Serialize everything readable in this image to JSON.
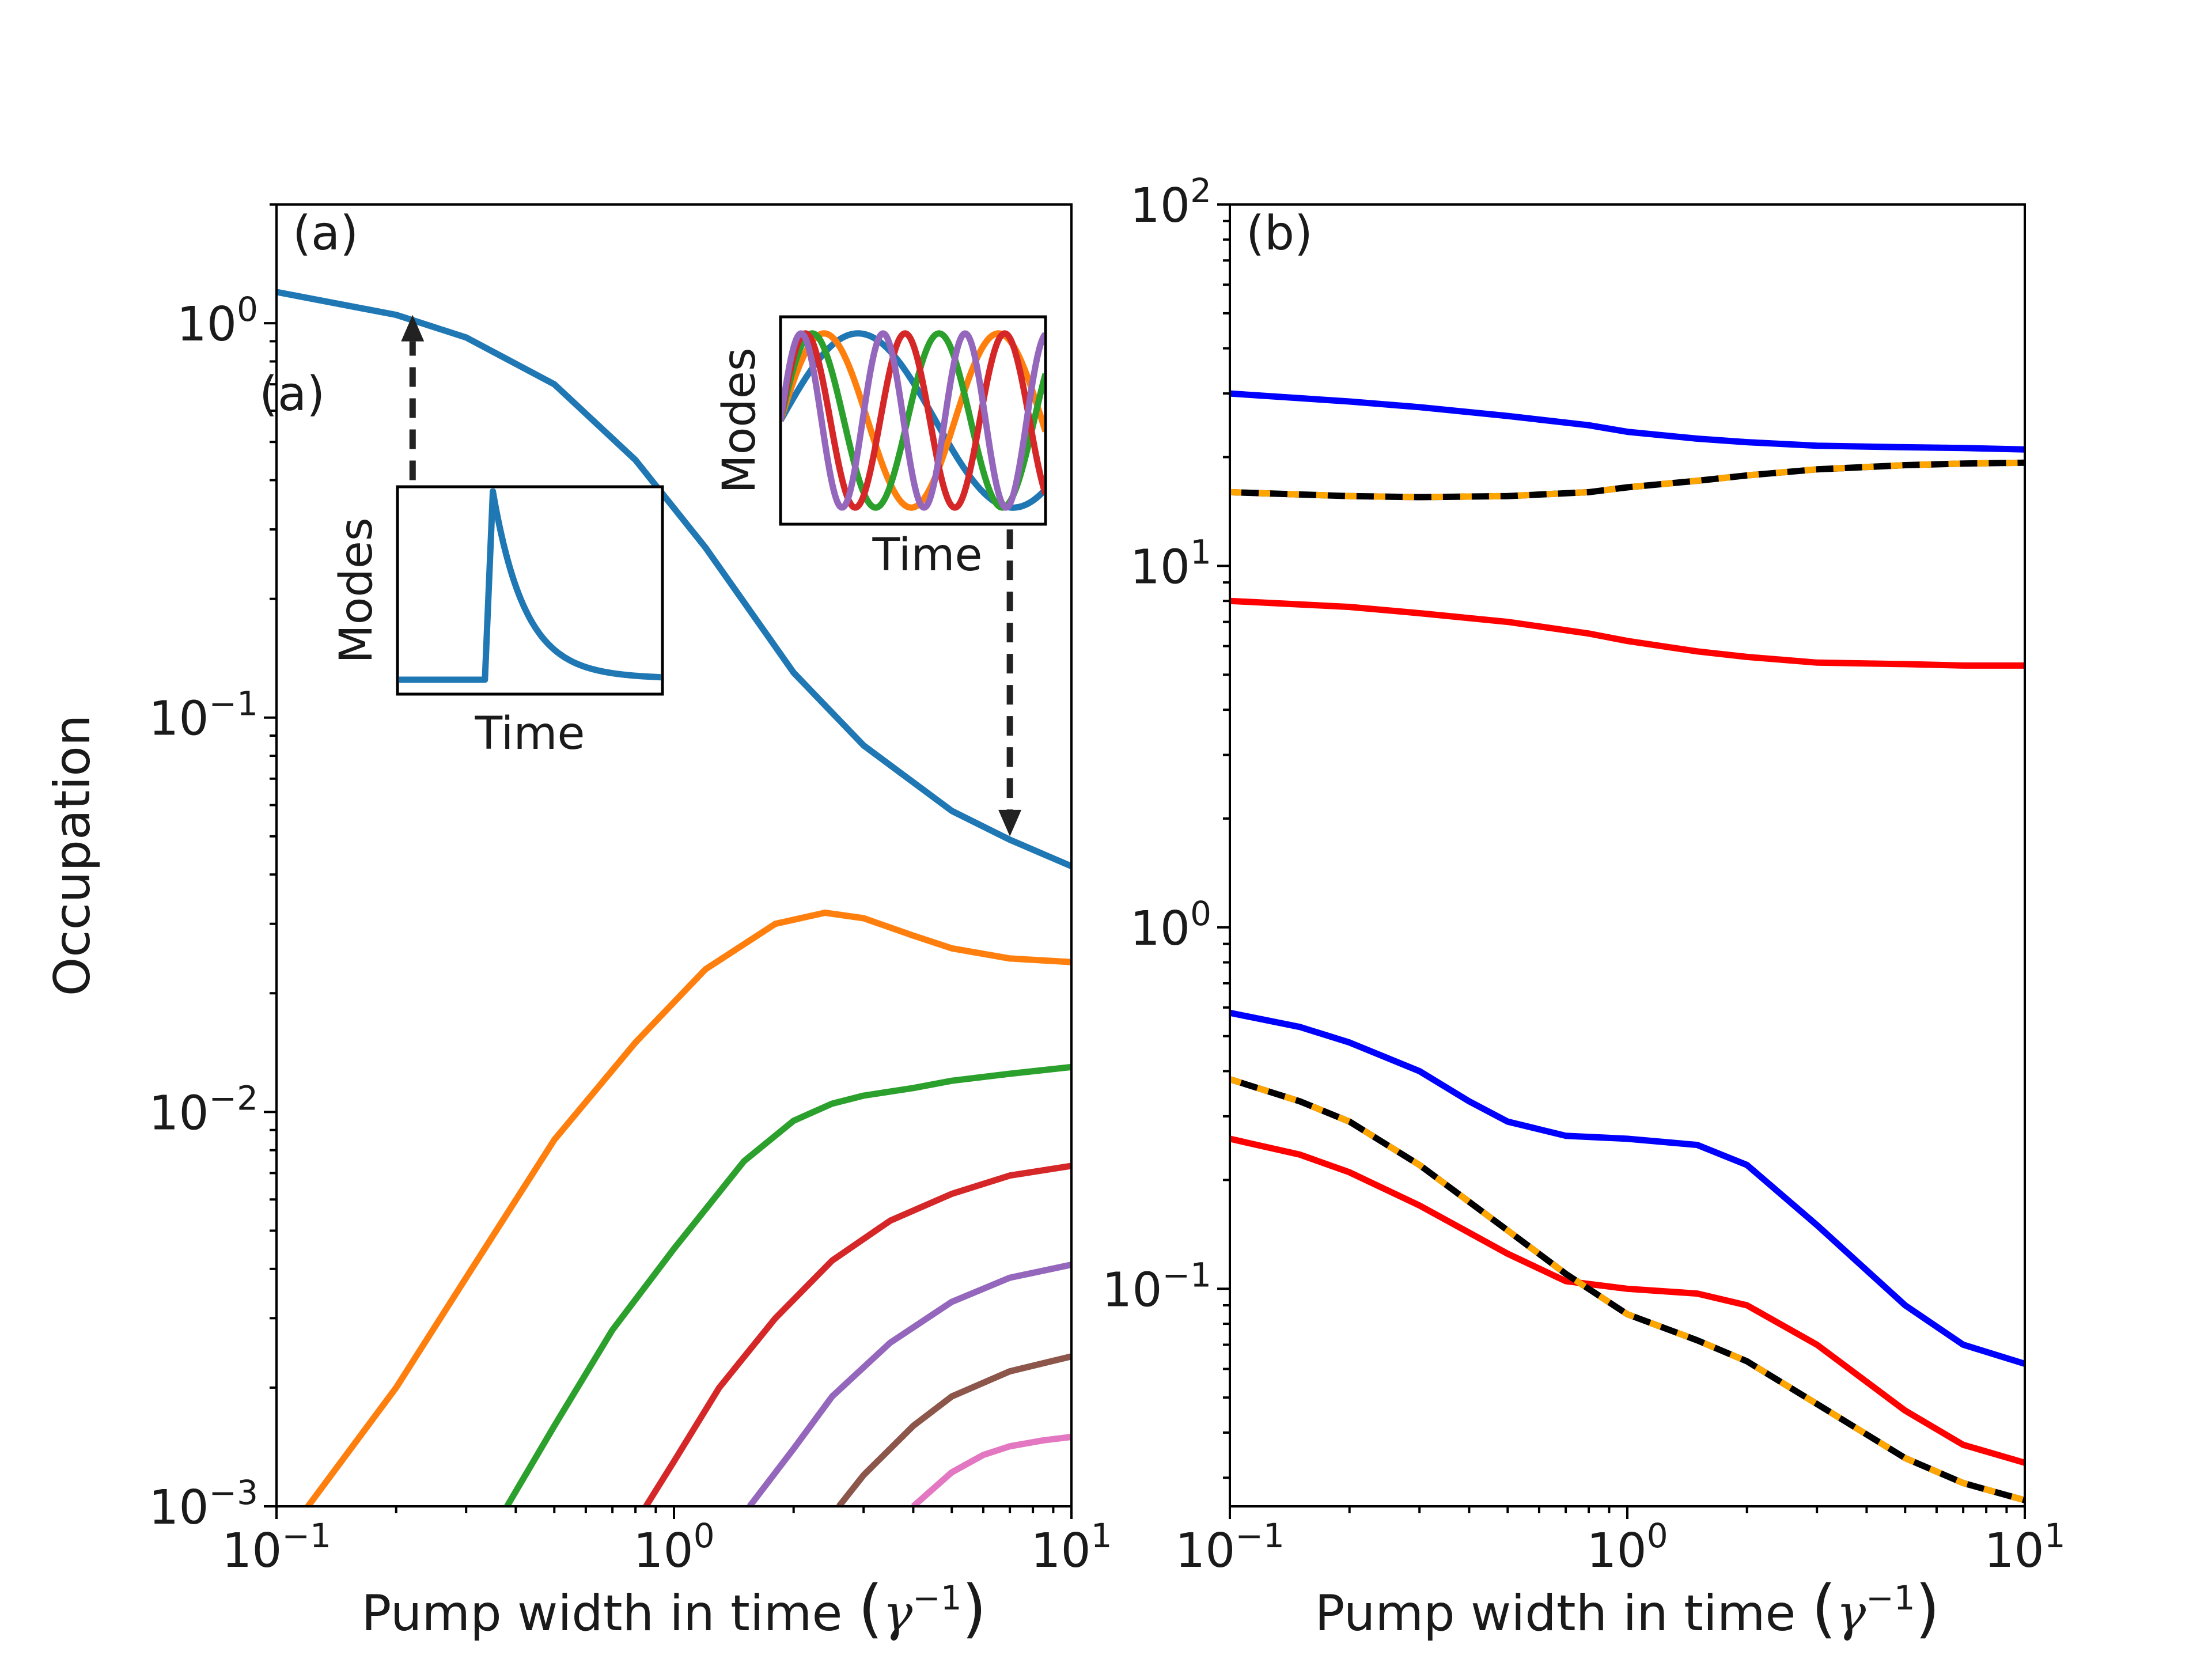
{
  "chart_data": [
    {
      "type": "line",
      "panel_label": "(a)",
      "extra_label": "(a)",
      "xlabel": "Pump width in time",
      "xlabel_unit_symbol": "γ",
      "xlabel_unit_power": "−1",
      "ylabel": "Occupation",
      "xscale": "log",
      "yscale": "log",
      "xlim": [
        0.1,
        10
      ],
      "ylim": [
        0.001,
        2.0
      ],
      "xticks": [
        {
          "value": 0.1,
          "base": "10",
          "exp": "−1"
        },
        {
          "value": 1,
          "base": "10",
          "exp": "0"
        },
        {
          "value": 10,
          "base": "10",
          "exp": "1"
        }
      ],
      "yticks": [
        {
          "value": 0.001,
          "base": "10",
          "exp": "−3"
        },
        {
          "value": 0.01,
          "base": "10",
          "exp": "−2"
        },
        {
          "value": 0.1,
          "base": "10",
          "exp": "−1"
        },
        {
          "value": 1,
          "base": "10",
          "exp": "0"
        }
      ],
      "series": [
        {
          "color": "#1f77b4",
          "x": [
            0.1,
            0.2,
            0.3,
            0.5,
            0.8,
            1.2,
            2,
            3,
            5,
            7,
            10
          ],
          "y": [
            1.2,
            1.05,
            0.92,
            0.7,
            0.45,
            0.27,
            0.13,
            0.085,
            0.058,
            0.049,
            0.042
          ]
        },
        {
          "color": "#ff7f0e",
          "x": [
            0.1,
            0.12,
            0.2,
            0.3,
            0.5,
            0.8,
            1.2,
            1.8,
            2.4,
            3,
            4,
            5,
            7,
            10
          ],
          "y": [
            0.0008,
            0.001,
            0.002,
            0.0038,
            0.0085,
            0.015,
            0.023,
            0.03,
            0.032,
            0.031,
            0.028,
            0.026,
            0.0245,
            0.024
          ]
        },
        {
          "color": "#2ca02c",
          "x": [
            0.38,
            0.5,
            0.7,
            1,
            1.5,
            2,
            2.5,
            3,
            4,
            5,
            7,
            10
          ],
          "y": [
            0.001,
            0.0016,
            0.0028,
            0.0045,
            0.0075,
            0.0095,
            0.0105,
            0.011,
            0.0115,
            0.012,
            0.0125,
            0.013
          ]
        },
        {
          "color": "#d62728",
          "x": [
            0.85,
            1,
            1.3,
            1.8,
            2.5,
            3.5,
            5,
            7,
            10
          ],
          "y": [
            0.001,
            0.0013,
            0.002,
            0.003,
            0.0042,
            0.0053,
            0.0062,
            0.0069,
            0.0073
          ]
        },
        {
          "color": "#9467bd",
          "x": [
            1.55,
            2,
            2.5,
            3.5,
            5,
            7,
            10
          ],
          "y": [
            0.001,
            0.0014,
            0.0019,
            0.0026,
            0.0033,
            0.0038,
            0.0041
          ]
        },
        {
          "color": "#8c564b",
          "x": [
            2.6,
            3,
            4,
            5,
            7,
            10
          ],
          "y": [
            0.001,
            0.0012,
            0.0016,
            0.0019,
            0.0022,
            0.0024
          ]
        },
        {
          "color": "#e377c2",
          "x": [
            4,
            5,
            6,
            7,
            8.5,
            10
          ],
          "y": [
            0.001,
            0.00122,
            0.00135,
            0.00142,
            0.00147,
            0.0015
          ]
        }
      ],
      "arrows": [
        {
          "from": [
            0.22,
            0.4
          ],
          "to": [
            0.22,
            1.05
          ]
        },
        {
          "from": [
            7.0,
            0.3
          ],
          "to": [
            7.0,
            0.05
          ]
        }
      ],
      "insets": [
        {
          "xlabel": "Time",
          "ylabel": "Modes",
          "kind": "pulse",
          "color": "#1f77b4"
        },
        {
          "xlabel": "Time",
          "ylabel": "Modes",
          "kind": "modes",
          "colors": [
            "#1f77b4",
            "#ff7f0e",
            "#2ca02c",
            "#d62728",
            "#9467bd"
          ]
        }
      ]
    },
    {
      "type": "line",
      "panel_label": "(b)",
      "xlabel": "Pump width in time",
      "xlabel_unit_symbol": "γ",
      "xlabel_unit_power": "−1",
      "xscale": "log",
      "yscale": "log",
      "xlim": [
        0.1,
        10
      ],
      "ylim": [
        0.025,
        100
      ],
      "xticks": [
        {
          "value": 0.1,
          "base": "10",
          "exp": "−1"
        },
        {
          "value": 1,
          "base": "10",
          "exp": "0"
        },
        {
          "value": 10,
          "base": "10",
          "exp": "1"
        }
      ],
      "yticks": [
        {
          "value": 0.1,
          "base": "10",
          "exp": "−1"
        },
        {
          "value": 1,
          "base": "10",
          "exp": "0"
        },
        {
          "value": 10,
          "base": "10",
          "exp": "1"
        },
        {
          "value": 100,
          "base": "10",
          "exp": "2"
        }
      ],
      "series": [
        {
          "color": "#0000ff",
          "x": [
            0.1,
            0.2,
            0.3,
            0.5,
            0.8,
            1,
            1.5,
            2,
            3,
            5,
            7,
            10
          ],
          "y": [
            30,
            28.5,
            27.5,
            26,
            24.5,
            23.5,
            22.5,
            22,
            21.5,
            21.3,
            21.2,
            21
          ]
        },
        {
          "color": "#ff0000",
          "x": [
            0.1,
            0.2,
            0.3,
            0.5,
            0.8,
            1,
            1.5,
            2,
            3,
            5,
            7,
            10
          ],
          "y": [
            8,
            7.7,
            7.4,
            7,
            6.5,
            6.2,
            5.8,
            5.6,
            5.4,
            5.35,
            5.3,
            5.3
          ]
        },
        {
          "color": "#000000",
          "dash_color": "#ffa500",
          "x": [
            0.1,
            0.2,
            0.3,
            0.5,
            0.8,
            1,
            1.5,
            2,
            3,
            5,
            7,
            10
          ],
          "y": [
            16,
            15.6,
            15.5,
            15.6,
            16,
            16.5,
            17.2,
            17.8,
            18.5,
            19,
            19.2,
            19.3
          ]
        },
        {
          "color": "#0000ff",
          "x": [
            0.1,
            0.15,
            0.2,
            0.3,
            0.4,
            0.5,
            0.7,
            1,
            1.5,
            2,
            3,
            5,
            7,
            10
          ],
          "y": [
            0.58,
            0.53,
            0.48,
            0.4,
            0.33,
            0.29,
            0.265,
            0.26,
            0.25,
            0.22,
            0.15,
            0.09,
            0.07,
            0.062
          ]
        },
        {
          "color": "#ff0000",
          "x": [
            0.1,
            0.15,
            0.2,
            0.3,
            0.5,
            0.7,
            1,
            1.5,
            2,
            3,
            5,
            7,
            10
          ],
          "y": [
            0.26,
            0.235,
            0.21,
            0.17,
            0.125,
            0.105,
            0.1,
            0.097,
            0.09,
            0.07,
            0.046,
            0.037,
            0.033
          ]
        },
        {
          "color": "#000000",
          "dash_color": "#ffa500",
          "x": [
            0.1,
            0.15,
            0.2,
            0.3,
            0.5,
            0.7,
            1,
            1.5,
            2,
            3,
            5,
            7,
            10
          ],
          "y": [
            0.38,
            0.33,
            0.29,
            0.22,
            0.145,
            0.11,
            0.085,
            0.072,
            0.063,
            0.048,
            0.034,
            0.029,
            0.026
          ]
        }
      ]
    }
  ]
}
